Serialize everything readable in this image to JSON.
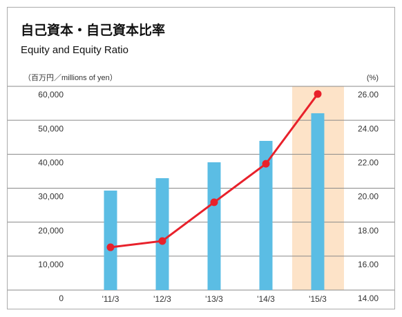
{
  "chart_data": {
    "type": "bar-line",
    "title": "自己資本・自己資本比率",
    "subtitle": "Equity and Equity Ratio",
    "y_label": "（百万円／millions of yen）",
    "y2_label": "(%)",
    "categories": [
      "'11/3",
      "'12/3",
      "'13/3",
      "'14/3",
      "'15/3"
    ],
    "series": [
      {
        "name": "Equity",
        "type": "bar",
        "color": "#5bbde4",
        "values": [
          29300,
          32950,
          37630,
          43930,
          52070
        ]
      },
      {
        "name": "Equity Ratio",
        "type": "line",
        "axis": "y2",
        "color": "#e8212b",
        "values": [
          16.52,
          16.89,
          19.17,
          21.44,
          25.55
        ]
      }
    ],
    "ylim": [
      0,
      60000
    ],
    "yticks": [
      0,
      {
        "value": 10000,
        "label": "10,000"
      },
      {
        "value": 20000,
        "label": "20,000"
      },
      {
        "value": 30000,
        "label": "30,000"
      },
      {
        "value": 40000,
        "label": "40,000"
      },
      {
        "value": 50000,
        "label": "50,000"
      },
      {
        "value": 60000,
        "label": "60,000"
      }
    ],
    "y2lim": [
      14,
      26
    ],
    "y2ticks": [
      {
        "value": 14,
        "label": "14.00"
      },
      {
        "value": 16,
        "label": "16.00"
      },
      {
        "value": 18,
        "label": "18.00"
      },
      {
        "value": 20,
        "label": "20.00"
      },
      {
        "value": 22,
        "label": "22.00"
      },
      {
        "value": 24,
        "label": "24.00"
      },
      {
        "value": 26,
        "label": "26.00"
      }
    ],
    "grid": true
  }
}
